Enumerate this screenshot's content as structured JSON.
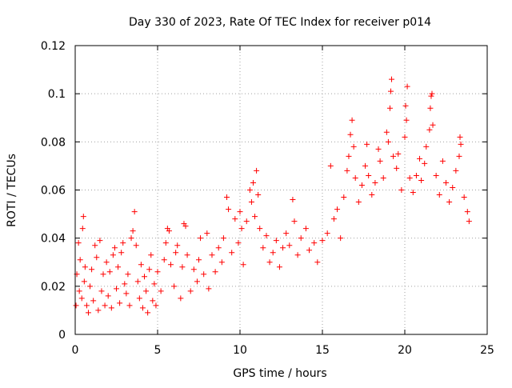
{
  "chart_data": {
    "type": "scatter",
    "title": "Day 330 of 2023, Rate Of TEC Index for receiver p014",
    "xlabel": "GPS time / hours",
    "ylabel": "ROTI / TECUs",
    "xlim": [
      0,
      25
    ],
    "ylim": [
      0,
      0.12
    ],
    "x_ticks": [
      0,
      5,
      10,
      15,
      20,
      25
    ],
    "x_tick_labels": [
      "0",
      "5",
      "10",
      "15",
      "20",
      "25"
    ],
    "y_ticks": [
      0,
      0.02,
      0.04,
      0.06,
      0.08,
      0.1,
      0.12
    ],
    "y_tick_labels": [
      "0",
      "0.02",
      "0.04",
      "0.06",
      "0.08",
      "0.1",
      "0.12"
    ],
    "grid": true,
    "marker": "+",
    "series": [
      {
        "name": "ROTI",
        "color": "#ff0000",
        "points": [
          [
            0.05,
            0.012
          ],
          [
            0.1,
            0.025
          ],
          [
            0.2,
            0.038
          ],
          [
            0.25,
            0.018
          ],
          [
            0.3,
            0.031
          ],
          [
            0.4,
            0.015
          ],
          [
            0.45,
            0.044
          ],
          [
            0.5,
            0.049
          ],
          [
            0.55,
            0.022
          ],
          [
            0.6,
            0.028
          ],
          [
            0.7,
            0.012
          ],
          [
            0.8,
            0.009
          ],
          [
            0.9,
            0.02
          ],
          [
            1.0,
            0.027
          ],
          [
            1.1,
            0.014
          ],
          [
            1.2,
            0.037
          ],
          [
            1.3,
            0.032
          ],
          [
            1.4,
            0.01
          ],
          [
            1.5,
            0.039
          ],
          [
            1.6,
            0.018
          ],
          [
            1.7,
            0.025
          ],
          [
            1.8,
            0.012
          ],
          [
            1.9,
            0.03
          ],
          [
            2.0,
            0.016
          ],
          [
            2.1,
            0.026
          ],
          [
            2.2,
            0.011
          ],
          [
            2.3,
            0.033
          ],
          [
            2.4,
            0.036
          ],
          [
            2.5,
            0.019
          ],
          [
            2.6,
            0.028
          ],
          [
            2.7,
            0.013
          ],
          [
            2.8,
            0.034
          ],
          [
            2.9,
            0.038
          ],
          [
            3.0,
            0.021
          ],
          [
            3.1,
            0.017
          ],
          [
            3.2,
            0.025
          ],
          [
            3.3,
            0.012
          ],
          [
            3.4,
            0.04
          ],
          [
            3.5,
            0.043
          ],
          [
            3.6,
            0.051
          ],
          [
            3.7,
            0.037
          ],
          [
            3.8,
            0.022
          ],
          [
            3.9,
            0.015
          ],
          [
            4.0,
            0.029
          ],
          [
            4.1,
            0.011
          ],
          [
            4.2,
            0.024
          ],
          [
            4.3,
            0.018
          ],
          [
            4.4,
            0.009
          ],
          [
            4.5,
            0.027
          ],
          [
            4.6,
            0.033
          ],
          [
            4.7,
            0.014
          ],
          [
            4.8,
            0.021
          ],
          [
            4.9,
            0.012
          ],
          [
            5.0,
            0.026
          ],
          [
            5.2,
            0.018
          ],
          [
            5.4,
            0.031
          ],
          [
            5.5,
            0.038
          ],
          [
            5.6,
            0.044
          ],
          [
            5.7,
            0.043
          ],
          [
            5.8,
            0.029
          ],
          [
            6.0,
            0.02
          ],
          [
            6.1,
            0.034
          ],
          [
            6.2,
            0.037
          ],
          [
            6.4,
            0.015
          ],
          [
            6.5,
            0.028
          ],
          [
            6.6,
            0.046
          ],
          [
            6.7,
            0.045
          ],
          [
            6.8,
            0.033
          ],
          [
            7.0,
            0.018
          ],
          [
            7.2,
            0.027
          ],
          [
            7.4,
            0.022
          ],
          [
            7.5,
            0.031
          ],
          [
            7.6,
            0.04
          ],
          [
            7.8,
            0.025
          ],
          [
            8.0,
            0.042
          ],
          [
            8.1,
            0.019
          ],
          [
            8.3,
            0.033
          ],
          [
            8.5,
            0.026
          ],
          [
            8.7,
            0.036
          ],
          [
            8.9,
            0.03
          ],
          [
            9.0,
            0.04
          ],
          [
            9.2,
            0.057
          ],
          [
            9.3,
            0.052
          ],
          [
            9.5,
            0.034
          ],
          [
            9.7,
            0.048
          ],
          [
            9.9,
            0.038
          ],
          [
            10.0,
            0.051
          ],
          [
            10.1,
            0.044
          ],
          [
            10.2,
            0.029
          ],
          [
            10.4,
            0.047
          ],
          [
            10.6,
            0.06
          ],
          [
            10.7,
            0.055
          ],
          [
            10.8,
            0.063
          ],
          [
            10.9,
            0.049
          ],
          [
            11.0,
            0.068
          ],
          [
            11.1,
            0.058
          ],
          [
            11.2,
            0.044
          ],
          [
            11.4,
            0.036
          ],
          [
            11.6,
            0.041
          ],
          [
            11.8,
            0.03
          ],
          [
            12.0,
            0.034
          ],
          [
            12.2,
            0.039
          ],
          [
            12.4,
            0.028
          ],
          [
            12.6,
            0.036
          ],
          [
            12.8,
            0.042
          ],
          [
            13.0,
            0.037
          ],
          [
            13.2,
            0.056
          ],
          [
            13.3,
            0.047
          ],
          [
            13.5,
            0.033
          ],
          [
            13.7,
            0.04
          ],
          [
            14.0,
            0.044
          ],
          [
            14.2,
            0.035
          ],
          [
            14.5,
            0.038
          ],
          [
            14.7,
            0.03
          ],
          [
            15.0,
            0.039
          ],
          [
            15.3,
            0.042
          ],
          [
            15.5,
            0.07
          ],
          [
            15.7,
            0.048
          ],
          [
            15.9,
            0.052
          ],
          [
            16.1,
            0.04
          ],
          [
            16.3,
            0.057
          ],
          [
            16.5,
            0.068
          ],
          [
            16.6,
            0.074
          ],
          [
            16.7,
            0.083
          ],
          [
            16.8,
            0.089
          ],
          [
            16.9,
            0.078
          ],
          [
            17.0,
            0.065
          ],
          [
            17.2,
            0.055
          ],
          [
            17.4,
            0.062
          ],
          [
            17.6,
            0.07
          ],
          [
            17.7,
            0.079
          ],
          [
            17.8,
            0.066
          ],
          [
            18.0,
            0.058
          ],
          [
            18.2,
            0.063
          ],
          [
            18.4,
            0.077
          ],
          [
            18.5,
            0.072
          ],
          [
            18.7,
            0.065
          ],
          [
            18.9,
            0.084
          ],
          [
            19.0,
            0.08
          ],
          [
            19.1,
            0.094
          ],
          [
            19.15,
            0.101
          ],
          [
            19.2,
            0.106
          ],
          [
            19.3,
            0.074
          ],
          [
            19.5,
            0.069
          ],
          [
            19.6,
            0.075
          ],
          [
            19.8,
            0.06
          ],
          [
            20.0,
            0.082
          ],
          [
            20.05,
            0.095
          ],
          [
            20.1,
            0.089
          ],
          [
            20.15,
            0.103
          ],
          [
            20.3,
            0.065
          ],
          [
            20.5,
            0.059
          ],
          [
            20.7,
            0.066
          ],
          [
            20.9,
            0.073
          ],
          [
            21.0,
            0.064
          ],
          [
            21.2,
            0.071
          ],
          [
            21.3,
            0.078
          ],
          [
            21.5,
            0.085
          ],
          [
            21.55,
            0.094
          ],
          [
            21.6,
            0.099
          ],
          [
            21.65,
            0.1
          ],
          [
            21.7,
            0.087
          ],
          [
            21.9,
            0.066
          ],
          [
            22.1,
            0.058
          ],
          [
            22.3,
            0.072
          ],
          [
            22.5,
            0.063
          ],
          [
            22.7,
            0.055
          ],
          [
            22.9,
            0.061
          ],
          [
            23.1,
            0.068
          ],
          [
            23.3,
            0.074
          ],
          [
            23.35,
            0.082
          ],
          [
            23.4,
            0.079
          ],
          [
            23.6,
            0.057
          ],
          [
            23.8,
            0.051
          ],
          [
            23.9,
            0.047
          ]
        ]
      }
    ]
  }
}
